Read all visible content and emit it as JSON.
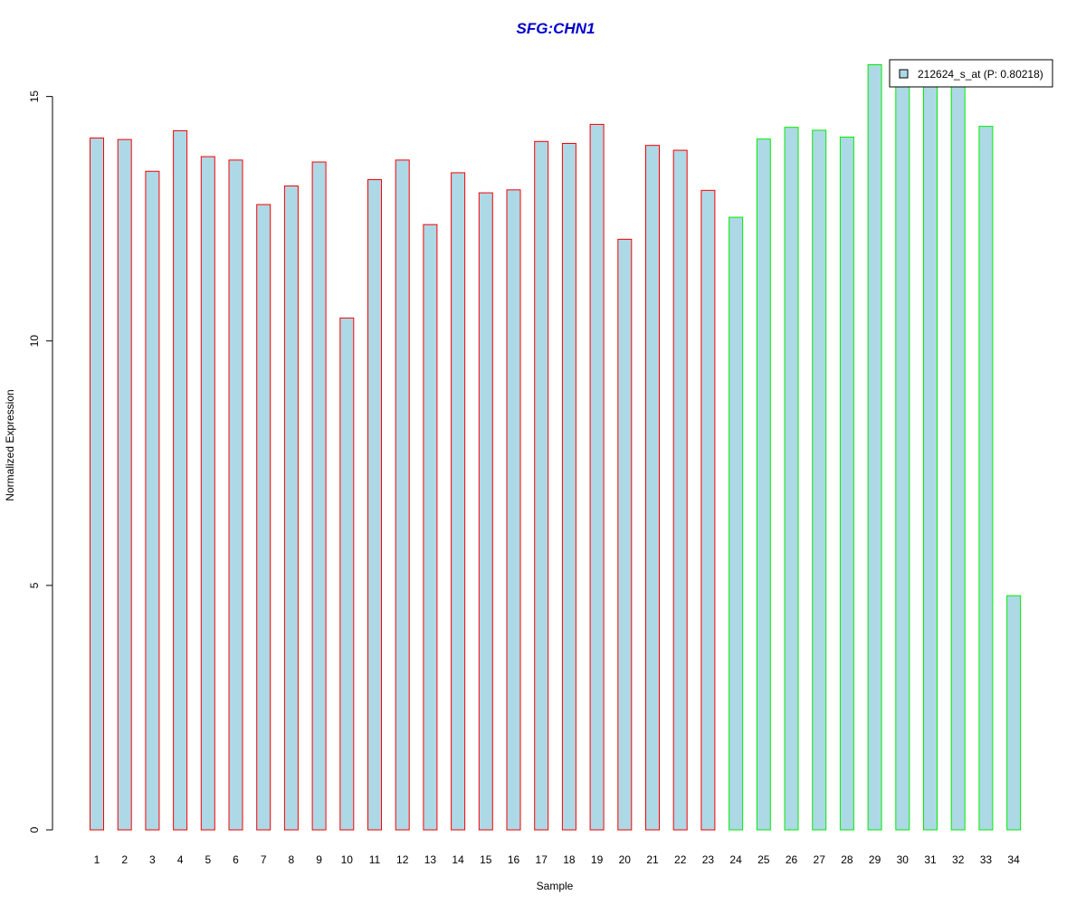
{
  "chart_data": {
    "type": "bar",
    "title": "SFG:CHN1",
    "xlabel": "Sample",
    "ylabel": "Normalized Expression",
    "ylim": [
      0,
      15.9
    ],
    "yticks": [
      0,
      5,
      10,
      15
    ],
    "categories": [
      "1",
      "2",
      "3",
      "4",
      "5",
      "6",
      "7",
      "8",
      "9",
      "10",
      "11",
      "12",
      "13",
      "14",
      "15",
      "16",
      "17",
      "18",
      "19",
      "20",
      "21",
      "22",
      "23",
      "24",
      "25",
      "26",
      "27",
      "28",
      "29",
      "30",
      "31",
      "32",
      "33",
      "34"
    ],
    "series": [
      {
        "name": "212624_s_at (P: 0.80218)",
        "values": [
          14.15,
          14.12,
          13.47,
          14.3,
          13.77,
          13.7,
          12.79,
          13.17,
          13.66,
          10.47,
          13.3,
          13.7,
          12.38,
          13.44,
          13.03,
          13.09,
          14.08,
          14.04,
          14.43,
          12.08,
          14.0,
          13.9,
          13.08,
          12.53,
          14.13,
          14.37,
          14.31,
          14.17,
          15.65,
          15.5,
          15.75,
          15.2,
          14.39,
          4.79
        ]
      }
    ],
    "group_split_index": 23,
    "legend": {
      "position": "top-right",
      "label": "212624_s_at (P: 0.80218)"
    },
    "grid": false
  },
  "colors": {
    "bar_fill": "#add8e6",
    "group1_border": "#ff0000",
    "group2_border": "#00ee00",
    "title": "#0000cd",
    "axis": "#000000"
  }
}
